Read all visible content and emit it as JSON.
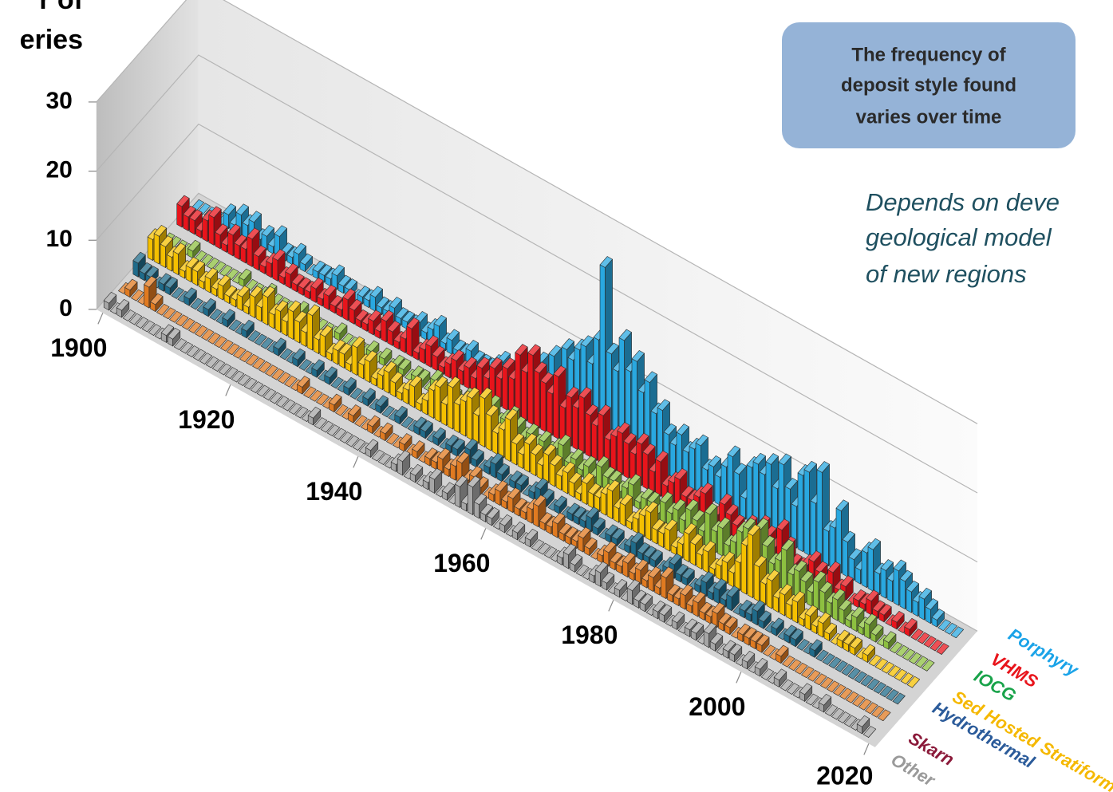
{
  "chart_data": {
    "type": "bar3d",
    "ylabel_lines": [
      "r of",
      "eries"
    ],
    "callout": [
      "The frequency of",
      "deposit style  found",
      "varies over time"
    ],
    "note_lines": [
      "Depends on deve",
      "geological model",
      "of new regions"
    ],
    "ylim": [
      0,
      30
    ],
    "yticks": [
      0,
      10,
      20,
      30
    ],
    "xlim": [
      1899,
      2021
    ],
    "xticks": [
      1900,
      1920,
      1940,
      1960,
      1980,
      2000,
      2020
    ],
    "grid": true,
    "x": [
      1900,
      1901,
      1902,
      1903,
      1904,
      1905,
      1906,
      1907,
      1908,
      1909,
      1910,
      1911,
      1912,
      1913,
      1914,
      1915,
      1916,
      1917,
      1918,
      1919,
      1920,
      1921,
      1922,
      1923,
      1924,
      1925,
      1926,
      1927,
      1928,
      1929,
      1930,
      1931,
      1932,
      1933,
      1934,
      1935,
      1936,
      1937,
      1938,
      1939,
      1940,
      1941,
      1942,
      1943,
      1944,
      1945,
      1946,
      1947,
      1948,
      1949,
      1950,
      1951,
      1952,
      1953,
      1954,
      1955,
      1956,
      1957,
      1958,
      1959,
      1960,
      1961,
      1962,
      1963,
      1964,
      1965,
      1966,
      1967,
      1968,
      1969,
      1970,
      1971,
      1972,
      1973,
      1974,
      1975,
      1976,
      1977,
      1978,
      1979,
      1980,
      1981,
      1982,
      1983,
      1984,
      1985,
      1986,
      1987,
      1988,
      1989,
      1990,
      1991,
      1992,
      1993,
      1994,
      1995,
      1996,
      1997,
      1998,
      1999,
      2000,
      2001,
      2002,
      2003,
      2004,
      2005,
      2006,
      2007,
      2008,
      2009,
      2010,
      2011,
      2012,
      2013,
      2014,
      2015,
      2016,
      2017,
      2018,
      2019
    ],
    "series": [
      {
        "name": "Porphyry",
        "color": "#29a8e0",
        "label_color": "#1aa3e8",
        "values": [
          0,
          0,
          0,
          0,
          0,
          2,
          1,
          3,
          2,
          3,
          1,
          2,
          1,
          3,
          1,
          1,
          2,
          1,
          0,
          1,
          1,
          1,
          2,
          1,
          1,
          0,
          1,
          1,
          2,
          1,
          1,
          2,
          1,
          1,
          1,
          2,
          1,
          2,
          3,
          1,
          2,
          1,
          1,
          2,
          1,
          1,
          1,
          2,
          3,
          2,
          3,
          2,
          4,
          3,
          6,
          4,
          8,
          5,
          10,
          9,
          11,
          12,
          10,
          14,
          25,
          13,
          11,
          16,
          12,
          14,
          10,
          12,
          8,
          9,
          6,
          5,
          7,
          5,
          6,
          7,
          4,
          5,
          4,
          6,
          8,
          6,
          3,
          8,
          9,
          8,
          10,
          7,
          11,
          8,
          6,
          11,
          12,
          8,
          13,
          5,
          6,
          9,
          5,
          3,
          2,
          5,
          6,
          3,
          4,
          3,
          5,
          4,
          3,
          2,
          3,
          2,
          1,
          0,
          0,
          0
        ]
      },
      {
        "name": "VHMS",
        "color": "#e8141b",
        "label_color": "#e8141b",
        "values": [
          3,
          2,
          2,
          1,
          3,
          4,
          2,
          1,
          3,
          2,
          2,
          4,
          2,
          1,
          2,
          3,
          1,
          2,
          1,
          1,
          1,
          2,
          1,
          2,
          1,
          1,
          3,
          2,
          1,
          1,
          2,
          1,
          3,
          2,
          1,
          2,
          4,
          1,
          2,
          3,
          2,
          1,
          2,
          3,
          2,
          3,
          2,
          4,
          3,
          5,
          4,
          6,
          5,
          9,
          7,
          10,
          8,
          7,
          6,
          9,
          5,
          7,
          6,
          8,
          6,
          5,
          7,
          4,
          5,
          6,
          5,
          4,
          6,
          5,
          3,
          5,
          2,
          3,
          4,
          2,
          2,
          3,
          4,
          1,
          2,
          4,
          3,
          2,
          1,
          3,
          2,
          4,
          3,
          2,
          5,
          3,
          1,
          1,
          2,
          3,
          2,
          1,
          3,
          1,
          2,
          0,
          1,
          1,
          2,
          1,
          1,
          0,
          1,
          0,
          1,
          0,
          0,
          0,
          0,
          0
        ]
      },
      {
        "name": "IOCG",
        "color": "#8dc040",
        "label_color": "#19a34a",
        "values": [
          0,
          0,
          0,
          0,
          1,
          0,
          0,
          0,
          0,
          0,
          0,
          0,
          1,
          0,
          0,
          0,
          1,
          0,
          0,
          0,
          0,
          1,
          0,
          0,
          0,
          0,
          0,
          1,
          0,
          0,
          0,
          0,
          1,
          0,
          1,
          0,
          1,
          1,
          0,
          1,
          1,
          0,
          2,
          1,
          0,
          1,
          0,
          2,
          1,
          1,
          2,
          3,
          1,
          2,
          3,
          2,
          1,
          2,
          1,
          2,
          1,
          2,
          3,
          1,
          2,
          1,
          2,
          1,
          3,
          2,
          2,
          1,
          2,
          3,
          1,
          2,
          2,
          1,
          3,
          2,
          3,
          2,
          4,
          3,
          2,
          5,
          3,
          4,
          2,
          3,
          5,
          6,
          4,
          7,
          5,
          3,
          4,
          6,
          3,
          4,
          3,
          2,
          4,
          3,
          2,
          3,
          2,
          1,
          2,
          1,
          2,
          1,
          0,
          1,
          0,
          0,
          0,
          0,
          0,
          0
        ]
      },
      {
        "name": "Sed Hosted Stratiform",
        "color": "#f5c000",
        "label_color": "#f5b800",
        "values": [
          3,
          4,
          3,
          2,
          3,
          1,
          2,
          2,
          1,
          2,
          1,
          2,
          1,
          1,
          2,
          1,
          3,
          2,
          4,
          2,
          3,
          2,
          4,
          3,
          2,
          5,
          2,
          3,
          1,
          2,
          2,
          1,
          4,
          2,
          3,
          1,
          2,
          3,
          2,
          1,
          2,
          3,
          1,
          2,
          4,
          5,
          3,
          6,
          4,
          5,
          6,
          4,
          7,
          5,
          3,
          4,
          6,
          3,
          2,
          4,
          3,
          2,
          4,
          3,
          2,
          3,
          2,
          1,
          3,
          2,
          2,
          3,
          4,
          2,
          3,
          1,
          2,
          3,
          4,
          2,
          2,
          3,
          1,
          2,
          4,
          3,
          2,
          3,
          1,
          2,
          3,
          2,
          4,
          7,
          9,
          5,
          3,
          4,
          2,
          3,
          2,
          3,
          1,
          2,
          1,
          2,
          1,
          0,
          1,
          1,
          1,
          0,
          1,
          0,
          0,
          0,
          0,
          0,
          0,
          0
        ]
      },
      {
        "name": "Hydrothermal",
        "color": "#1f6b8a",
        "label_color": "#2b5b9a",
        "values": [
          2,
          1,
          1,
          0,
          1,
          1,
          0,
          0,
          1,
          0,
          0,
          1,
          0,
          0,
          1,
          0,
          0,
          1,
          0,
          0,
          0,
          0,
          1,
          0,
          0,
          1,
          0,
          0,
          1,
          0,
          1,
          0,
          0,
          1,
          0,
          0,
          1,
          0,
          1,
          0,
          0,
          1,
          0,
          0,
          1,
          1,
          0,
          1,
          0,
          1,
          1,
          0,
          2,
          1,
          0,
          1,
          2,
          1,
          0,
          1,
          1,
          0,
          1,
          2,
          1,
          0,
          1,
          0,
          1,
          1,
          1,
          2,
          1,
          0,
          1,
          1,
          0,
          1,
          2,
          1,
          1,
          1,
          0,
          1,
          2,
          1,
          1,
          0,
          1,
          2,
          1,
          2,
          1,
          2,
          0,
          1,
          1,
          2,
          1,
          0,
          1,
          0,
          1,
          1,
          0,
          0,
          1,
          0,
          0,
          0,
          0,
          0,
          0,
          0,
          0,
          0,
          0,
          0,
          0,
          0
        ]
      },
      {
        "name": "Skarn",
        "color": "#e07a20",
        "label_color": "#8b1a3a",
        "values": [
          0,
          1,
          0,
          0,
          3,
          1,
          0,
          0,
          0,
          0,
          0,
          0,
          0,
          0,
          0,
          0,
          0,
          0,
          0,
          0,
          0,
          0,
          0,
          0,
          0,
          0,
          0,
          0,
          1,
          0,
          0,
          0,
          0,
          1,
          0,
          0,
          1,
          0,
          0,
          1,
          0,
          1,
          0,
          0,
          1,
          0,
          1,
          0,
          1,
          1,
          2,
          1,
          2,
          3,
          1,
          2,
          1,
          0,
          1,
          2,
          1,
          2,
          1,
          1,
          2,
          3,
          1,
          1,
          2,
          1,
          1,
          1,
          2,
          1,
          0,
          1,
          2,
          1,
          1,
          2,
          1,
          2,
          1,
          2,
          1,
          3,
          1,
          1,
          2,
          1,
          2,
          1,
          1,
          2,
          1,
          1,
          0,
          1,
          1,
          1,
          1,
          0,
          0,
          1,
          0,
          0,
          0,
          0,
          0,
          0,
          0,
          0,
          0,
          0,
          0,
          0,
          0,
          0,
          0,
          0
        ]
      },
      {
        "name": "Other",
        "color": "#a6a6a6",
        "label_color": "#9a9a9a",
        "values": [
          1,
          0,
          1,
          0,
          0,
          0,
          0,
          0,
          0,
          1,
          1,
          0,
          0,
          0,
          0,
          0,
          0,
          0,
          0,
          0,
          0,
          0,
          0,
          0,
          0,
          0,
          0,
          0,
          0,
          0,
          0,
          0,
          1,
          0,
          0,
          0,
          0,
          0,
          0,
          0,
          0,
          1,
          0,
          0,
          0,
          1,
          2,
          0,
          1,
          0,
          1,
          2,
          0,
          1,
          0,
          3,
          1,
          4,
          2,
          1,
          1,
          0,
          1,
          0,
          1,
          0,
          1,
          0,
          0,
          0,
          0,
          1,
          2,
          1,
          0,
          0,
          1,
          2,
          1,
          0,
          1,
          0,
          2,
          1,
          1,
          0,
          1,
          1,
          0,
          1,
          0,
          1,
          1,
          0,
          2,
          1,
          0,
          1,
          1,
          0,
          1,
          0,
          1,
          0,
          0,
          1,
          0,
          0,
          0,
          1,
          0,
          0,
          1,
          0,
          0,
          0,
          0,
          0,
          1,
          0
        ]
      }
    ]
  }
}
